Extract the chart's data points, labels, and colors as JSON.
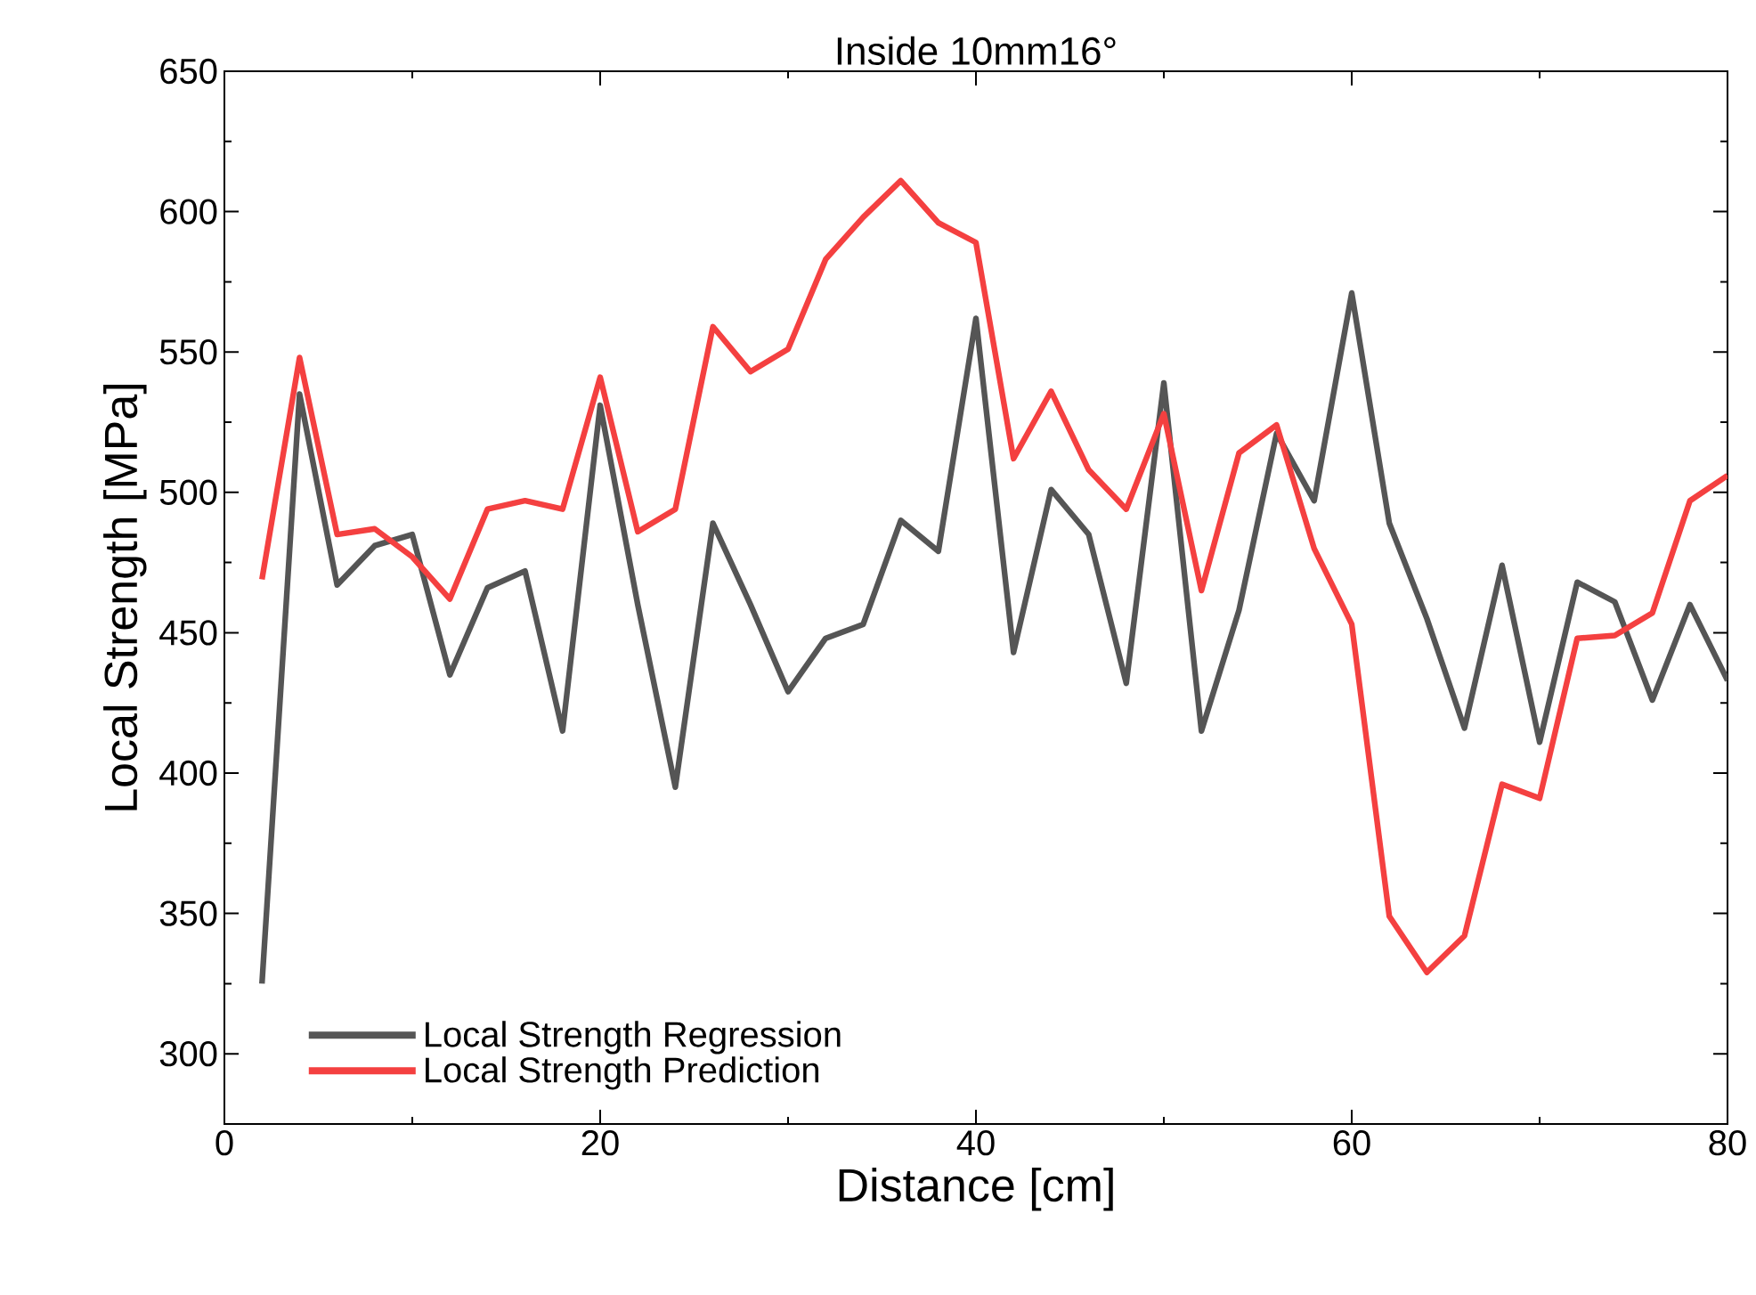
{
  "chart_data": {
    "type": "line",
    "title": "Inside 10mm16°",
    "xlabel": "Distance [cm]",
    "ylabel": "Local Strength [MPa]",
    "x": [
      2,
      4,
      6,
      8,
      10,
      12,
      14,
      16,
      18,
      20,
      22,
      24,
      26,
      28,
      30,
      32,
      34,
      36,
      38,
      40,
      42,
      44,
      46,
      48,
      50,
      52,
      54,
      56,
      58,
      60,
      62,
      64,
      66,
      68,
      70,
      72,
      74,
      76,
      78,
      80
    ],
    "series": [
      {
        "name": "Local Strength Regression",
        "color": "#555555",
        "values": [
          325,
          535,
          467,
          481,
          485,
          435,
          466,
          472,
          415,
          531,
          460,
          395,
          489,
          460,
          429,
          448,
          453,
          490,
          479,
          562,
          443,
          501,
          485,
          432,
          539,
          415,
          458,
          521,
          497,
          571,
          489,
          455,
          416,
          474,
          411,
          468,
          461,
          426,
          460,
          433
        ]
      },
      {
        "name": "Local Strength Prediction",
        "color": "#f44040",
        "values": [
          469,
          548,
          485,
          487,
          477,
          462,
          494,
          497,
          494,
          541,
          486,
          494,
          559,
          543,
          551,
          583,
          598,
          611,
          596,
          589,
          512,
          536,
          508,
          494,
          528,
          465,
          514,
          524,
          480,
          453,
          349,
          329,
          342,
          396,
          391,
          448,
          449,
          457,
          497,
          506
        ]
      }
    ],
    "xlim": [
      0,
      80
    ],
    "ylim": [
      275,
      650
    ],
    "xticks": [
      0,
      20,
      40,
      60,
      80
    ],
    "yticks": [
      300,
      350,
      400,
      450,
      500,
      550,
      600,
      650
    ],
    "grid": false,
    "legend": "bottom left",
    "marker": "none",
    "line_style": "solid"
  }
}
